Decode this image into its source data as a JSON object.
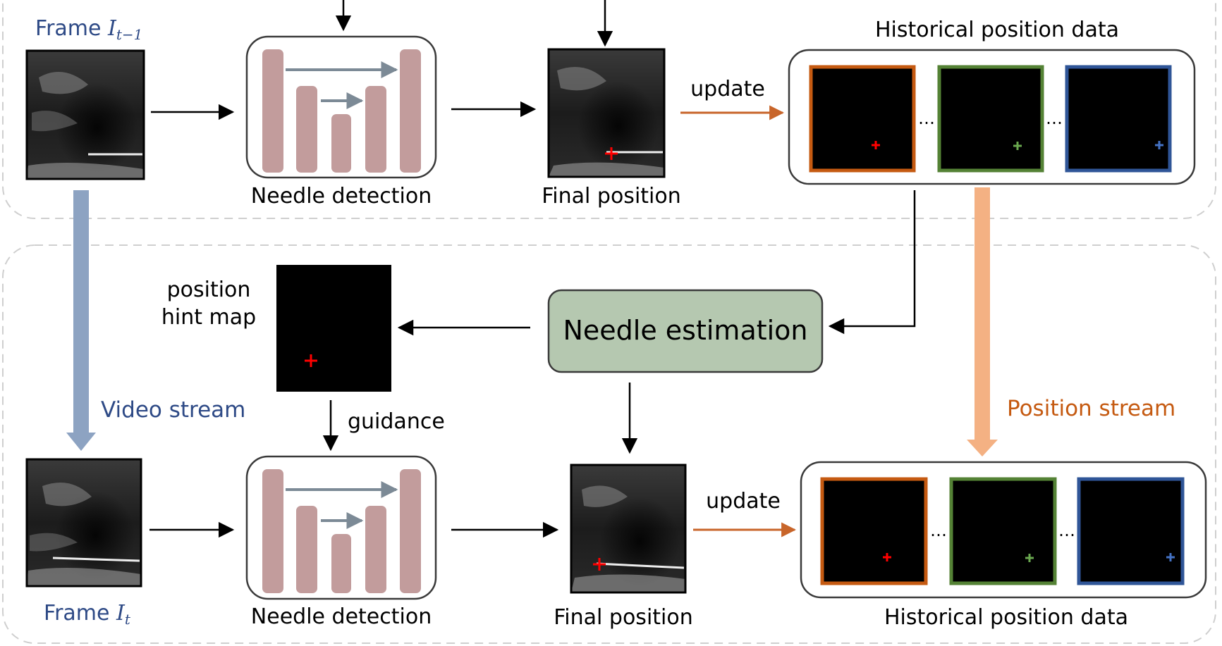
{
  "top_stage": {
    "frame_prefix": "Frame ",
    "frame_symbol": "I",
    "frame_subscript": "t−1",
    "detection_label": "Needle detection",
    "final_position_label": "Final position",
    "update_label": "update",
    "history_label": "Historical position data",
    "ellipsis_1": "…",
    "ellipsis_2": "…"
  },
  "bottom_stage": {
    "frame_prefix": "Frame ",
    "frame_symbol": "I",
    "frame_subscript": "t",
    "detection_label": "Needle detection",
    "final_position_label": "Final position",
    "update_label": "update",
    "history_label": "Historical position data",
    "ellipsis_1": "…",
    "ellipsis_2": "…"
  },
  "estimation_label": "Needle estimation",
  "hint_map_label_line1": "position",
  "hint_map_label_line2": "hint map",
  "guidance_label": "guidance",
  "video_stream_label": "Video stream",
  "position_stream_label": "Position stream",
  "colors": {
    "frame_label": "#2e4a86",
    "unet_bar": "#c29c9c",
    "unet_skip": "#7c8a96",
    "update_arrow": "#c8652a",
    "video_stream": "#8da3c2",
    "position_stream": "#f4b183",
    "estimation_fill": "#b5c8b0",
    "history_orange": "#c55a11",
    "history_green": "#548235",
    "history_blue": "#2f5597",
    "marker_red": "#ff0000"
  }
}
